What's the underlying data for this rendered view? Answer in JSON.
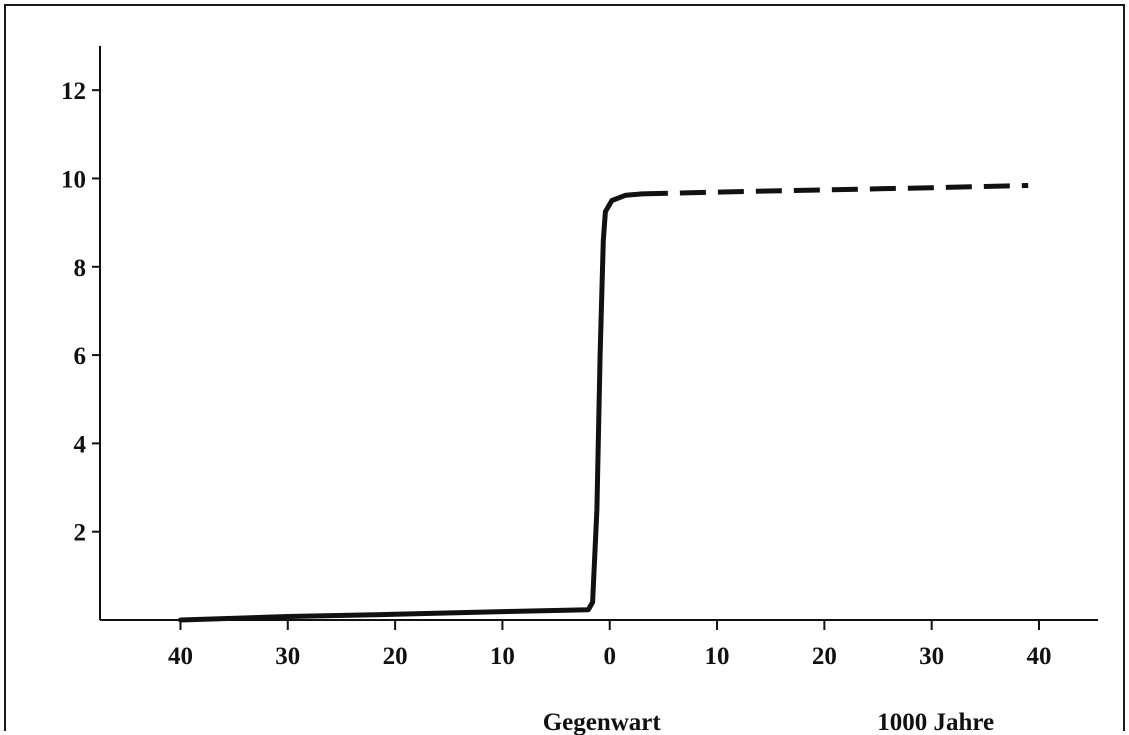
{
  "chart_data": {
    "type": "line",
    "title": "",
    "xlabel": "",
    "ylabel": "",
    "x_captions": {
      "center": "Gegenwart",
      "right": "1000 Jahre"
    },
    "x_ticks": [
      -40,
      -30,
      -20,
      -10,
      0,
      10,
      20,
      30,
      40
    ],
    "x_tick_labels": [
      "40",
      "30",
      "20",
      "10",
      "0",
      "10",
      "20",
      "30",
      "40"
    ],
    "y_ticks": [
      2,
      4,
      6,
      8,
      10,
      12
    ],
    "y_tick_labels": [
      "2",
      "4",
      "6",
      "8",
      "10",
      "12"
    ],
    "xlim": [
      -47.5,
      45.5
    ],
    "ylim": [
      0,
      13
    ],
    "grid": false,
    "series": [
      {
        "style": "solid",
        "color": "#111111",
        "points": [
          [
            -40,
            0.0
          ],
          [
            -30,
            0.08
          ],
          [
            -20,
            0.13
          ],
          [
            -10,
            0.19
          ],
          [
            -2,
            0.23
          ],
          [
            -1.6,
            0.4
          ],
          [
            -1.2,
            2.5
          ],
          [
            -0.9,
            6.0
          ],
          [
            -0.6,
            8.6
          ],
          [
            -0.4,
            9.25
          ],
          [
            0.2,
            9.5
          ],
          [
            1.5,
            9.62
          ],
          [
            3.0,
            9.65
          ]
        ]
      },
      {
        "style": "dashed",
        "color": "#111111",
        "points": [
          [
            3.0,
            9.65
          ],
          [
            10,
            9.69
          ],
          [
            20,
            9.74
          ],
          [
            30,
            9.79
          ],
          [
            39,
            9.84
          ]
        ]
      }
    ]
  }
}
